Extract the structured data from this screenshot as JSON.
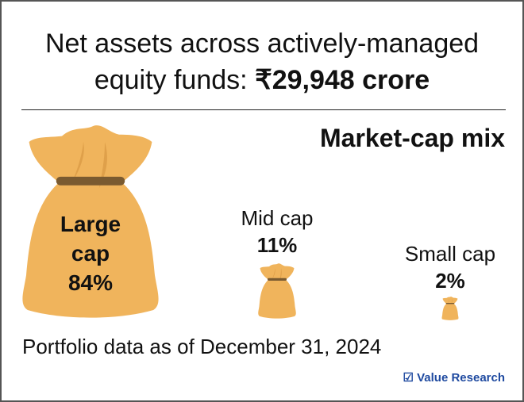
{
  "header": {
    "title_line1": "Net assets across actively-managed",
    "title_line2_prefix": "equity funds: ",
    "title_amount": "₹29,948 crore"
  },
  "chart_data": {
    "type": "pictogram",
    "title": "Market-cap mix",
    "categories": [
      "Large cap",
      "Mid cap",
      "Small cap"
    ],
    "values": [
      84,
      11,
      2
    ],
    "unit": "%",
    "labels": [
      {
        "name_l1": "Large",
        "name_l2": "cap",
        "value": "84%"
      },
      {
        "name": "Mid cap",
        "value": "11%"
      },
      {
        "name": "Small cap",
        "value": "2%"
      }
    ],
    "colors": {
      "bag": "#F0B45C",
      "fold": "#DFA04A",
      "band": "#7A5A30"
    }
  },
  "footer": {
    "note": "Portfolio data as of December 31, 2024",
    "logo": "Value Research",
    "logo_icon": "checkbox-icon"
  }
}
